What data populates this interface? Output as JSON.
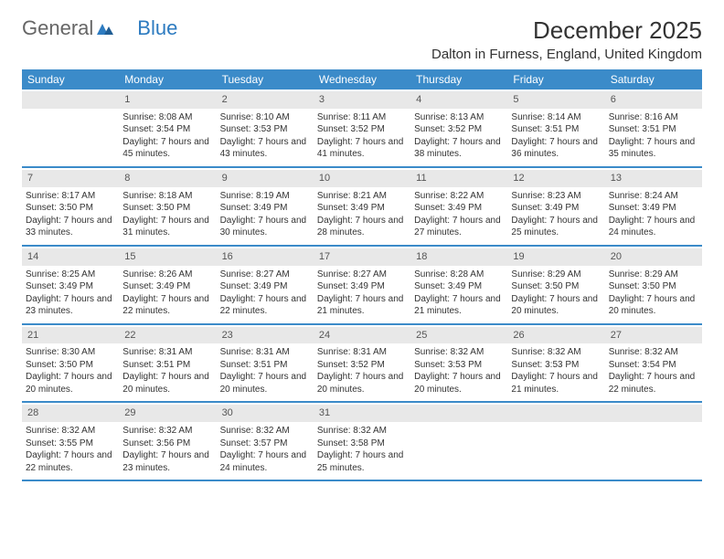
{
  "logo": {
    "general": "General",
    "blue": "Blue"
  },
  "header": {
    "month": "December 2025",
    "location": "Dalton in Furness, England, United Kingdom"
  },
  "colors": {
    "header_bg": "#3b8bc9",
    "header_text": "#ffffff",
    "daynum_bg": "#e8e8e8",
    "text": "#333333",
    "rule": "#3b8bc9"
  },
  "dayNames": [
    "Sunday",
    "Monday",
    "Tuesday",
    "Wednesday",
    "Thursday",
    "Friday",
    "Saturday"
  ],
  "weeks": [
    [
      null,
      {
        "n": "1",
        "sr": "8:08 AM",
        "ss": "3:54 PM",
        "dl": "7 hours and 45 minutes."
      },
      {
        "n": "2",
        "sr": "8:10 AM",
        "ss": "3:53 PM",
        "dl": "7 hours and 43 minutes."
      },
      {
        "n": "3",
        "sr": "8:11 AM",
        "ss": "3:52 PM",
        "dl": "7 hours and 41 minutes."
      },
      {
        "n": "4",
        "sr": "8:13 AM",
        "ss": "3:52 PM",
        "dl": "7 hours and 38 minutes."
      },
      {
        "n": "5",
        "sr": "8:14 AM",
        "ss": "3:51 PM",
        "dl": "7 hours and 36 minutes."
      },
      {
        "n": "6",
        "sr": "8:16 AM",
        "ss": "3:51 PM",
        "dl": "7 hours and 35 minutes."
      }
    ],
    [
      {
        "n": "7",
        "sr": "8:17 AM",
        "ss": "3:50 PM",
        "dl": "7 hours and 33 minutes."
      },
      {
        "n": "8",
        "sr": "8:18 AM",
        "ss": "3:50 PM",
        "dl": "7 hours and 31 minutes."
      },
      {
        "n": "9",
        "sr": "8:19 AM",
        "ss": "3:49 PM",
        "dl": "7 hours and 30 minutes."
      },
      {
        "n": "10",
        "sr": "8:21 AM",
        "ss": "3:49 PM",
        "dl": "7 hours and 28 minutes."
      },
      {
        "n": "11",
        "sr": "8:22 AM",
        "ss": "3:49 PM",
        "dl": "7 hours and 27 minutes."
      },
      {
        "n": "12",
        "sr": "8:23 AM",
        "ss": "3:49 PM",
        "dl": "7 hours and 25 minutes."
      },
      {
        "n": "13",
        "sr": "8:24 AM",
        "ss": "3:49 PM",
        "dl": "7 hours and 24 minutes."
      }
    ],
    [
      {
        "n": "14",
        "sr": "8:25 AM",
        "ss": "3:49 PM",
        "dl": "7 hours and 23 minutes."
      },
      {
        "n": "15",
        "sr": "8:26 AM",
        "ss": "3:49 PM",
        "dl": "7 hours and 22 minutes."
      },
      {
        "n": "16",
        "sr": "8:27 AM",
        "ss": "3:49 PM",
        "dl": "7 hours and 22 minutes."
      },
      {
        "n": "17",
        "sr": "8:27 AM",
        "ss": "3:49 PM",
        "dl": "7 hours and 21 minutes."
      },
      {
        "n": "18",
        "sr": "8:28 AM",
        "ss": "3:49 PM",
        "dl": "7 hours and 21 minutes."
      },
      {
        "n": "19",
        "sr": "8:29 AM",
        "ss": "3:50 PM",
        "dl": "7 hours and 20 minutes."
      },
      {
        "n": "20",
        "sr": "8:29 AM",
        "ss": "3:50 PM",
        "dl": "7 hours and 20 minutes."
      }
    ],
    [
      {
        "n": "21",
        "sr": "8:30 AM",
        "ss": "3:50 PM",
        "dl": "7 hours and 20 minutes."
      },
      {
        "n": "22",
        "sr": "8:31 AM",
        "ss": "3:51 PM",
        "dl": "7 hours and 20 minutes."
      },
      {
        "n": "23",
        "sr": "8:31 AM",
        "ss": "3:51 PM",
        "dl": "7 hours and 20 minutes."
      },
      {
        "n": "24",
        "sr": "8:31 AM",
        "ss": "3:52 PM",
        "dl": "7 hours and 20 minutes."
      },
      {
        "n": "25",
        "sr": "8:32 AM",
        "ss": "3:53 PM",
        "dl": "7 hours and 20 minutes."
      },
      {
        "n": "26",
        "sr": "8:32 AM",
        "ss": "3:53 PM",
        "dl": "7 hours and 21 minutes."
      },
      {
        "n": "27",
        "sr": "8:32 AM",
        "ss": "3:54 PM",
        "dl": "7 hours and 22 minutes."
      }
    ],
    [
      {
        "n": "28",
        "sr": "8:32 AM",
        "ss": "3:55 PM",
        "dl": "7 hours and 22 minutes."
      },
      {
        "n": "29",
        "sr": "8:32 AM",
        "ss": "3:56 PM",
        "dl": "7 hours and 23 minutes."
      },
      {
        "n": "30",
        "sr": "8:32 AM",
        "ss": "3:57 PM",
        "dl": "7 hours and 24 minutes."
      },
      {
        "n": "31",
        "sr": "8:32 AM",
        "ss": "3:58 PM",
        "dl": "7 hours and 25 minutes."
      },
      null,
      null,
      null
    ]
  ],
  "labels": {
    "sunrise": "Sunrise: ",
    "sunset": "Sunset: ",
    "daylight": "Daylight: "
  }
}
